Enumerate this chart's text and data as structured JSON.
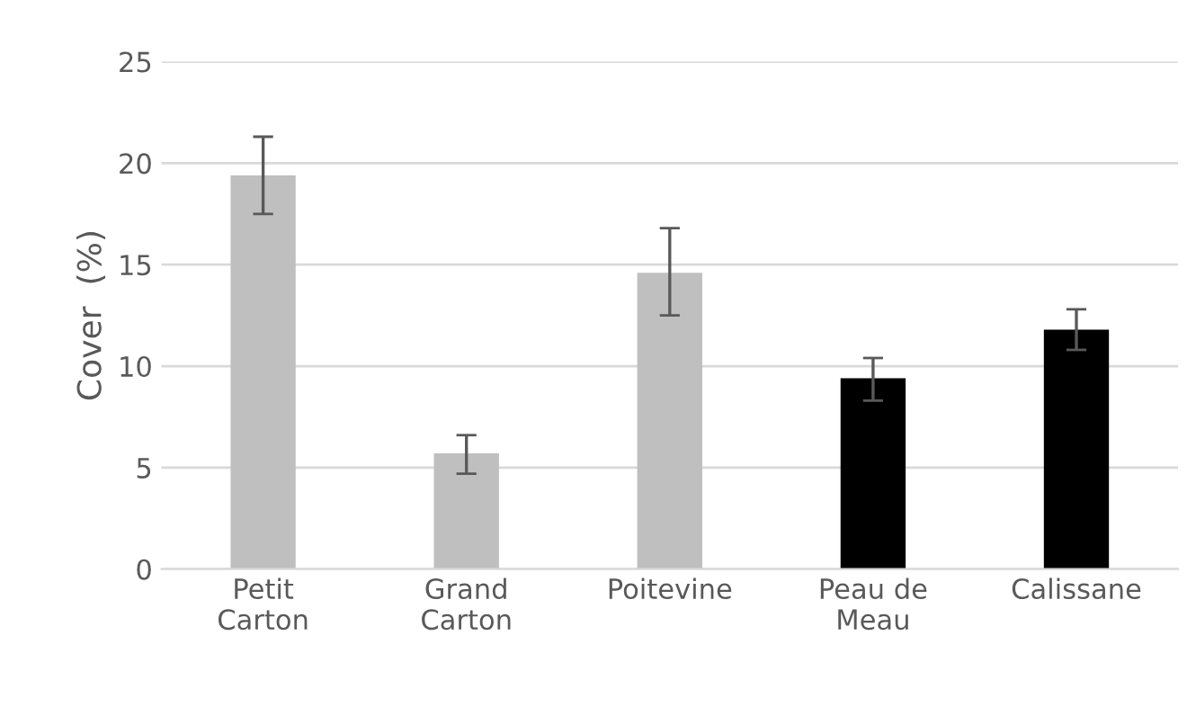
{
  "chart_data": {
    "type": "bar",
    "ylabel": "Cover  (%)",
    "categories": [
      "Petit\nCarton",
      "Grand\nCarton",
      "Poitevine",
      "Peau de\nMeau",
      "Calissane"
    ],
    "values": [
      19.4,
      5.7,
      14.6,
      9.4,
      11.8
    ],
    "colors": [
      "#bfbfbf",
      "#bfbfbf",
      "#bfbfbf",
      "#000000",
      "#000000"
    ],
    "errors": [
      [
        17.5,
        21.3
      ],
      [
        4.7,
        6.6
      ],
      [
        12.5,
        16.8
      ],
      [
        8.3,
        10.4
      ],
      [
        10.8,
        12.8
      ]
    ],
    "ylim": [
      0,
      25
    ],
    "yticks": [
      0,
      5,
      10,
      15,
      20,
      25
    ],
    "grid": "y",
    "legend": false
  }
}
